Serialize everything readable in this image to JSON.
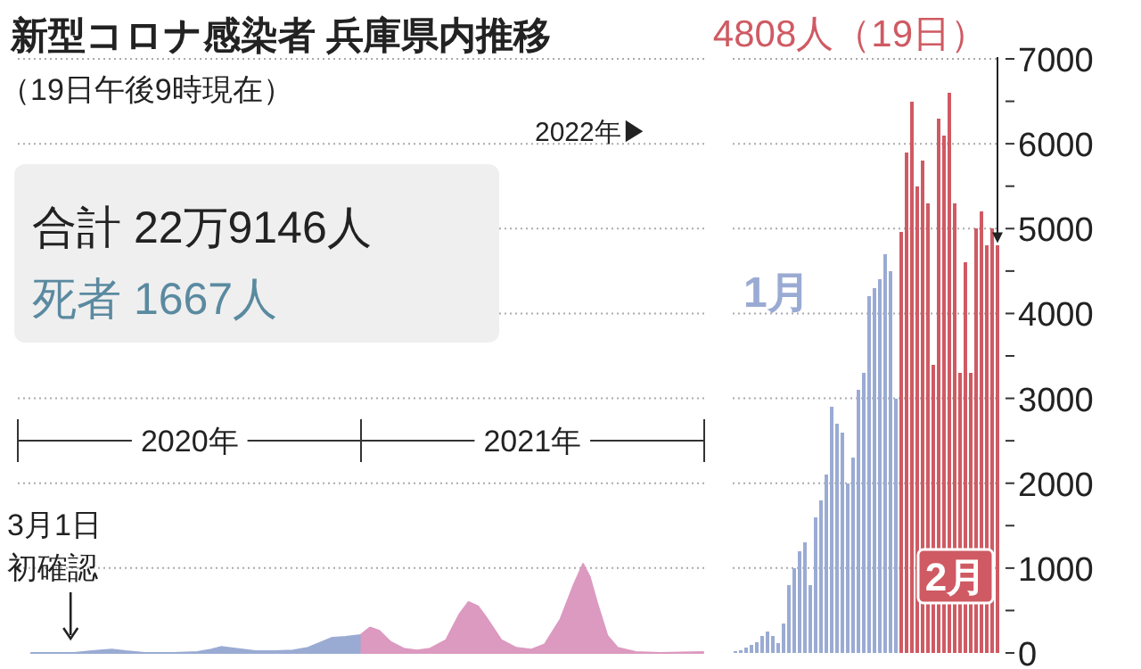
{
  "chart_data": [
    {
      "type": "area",
      "title": "新型コロナ感染者 兵庫県内推移",
      "subtitle": "（19日午後9時現在）",
      "annotations": [
        {
          "text": "3月1日初確認",
          "x": "2020-03-01",
          "y": 0
        },
        "2022年▶",
        "合計 22万9146人",
        "死者 1667人"
      ],
      "series": [
        {
          "color": "#9aabd3",
          "x": [
            "2020-01-15",
            "2020-02-15",
            "2020-03-01",
            "2020-03-20",
            "2020-04-10",
            "2020-04-25",
            "2020-05-15",
            "2020-06-15",
            "2020-07-10",
            "2020-07-25",
            "2020-08-05",
            "2020-08-20",
            "2020-09-10",
            "2020-10-01",
            "2020-10-20",
            "2020-11-05",
            "2020-11-20",
            "2020-12-01",
            "2020-12-15",
            "2020-12-31"
          ],
          "values": [
            0,
            0,
            0,
            20,
            40,
            20,
            0,
            0,
            10,
            40,
            70,
            50,
            20,
            20,
            30,
            60,
            130,
            180,
            190,
            210
          ]
        },
        {
          "color": "#dc9ac0",
          "x": [
            "2021-01-01",
            "2021-01-10",
            "2021-01-20",
            "2021-02-01",
            "2021-02-15",
            "2021-03-01",
            "2021-03-15",
            "2021-04-01",
            "2021-04-15",
            "2021-04-25",
            "2021-05-05",
            "2021-05-15",
            "2021-05-30",
            "2021-06-15",
            "2021-07-01",
            "2021-07-15",
            "2021-08-01",
            "2021-08-15",
            "2021-08-25",
            "2021-09-01",
            "2021-09-10",
            "2021-09-20",
            "2021-10-01",
            "2021-10-20",
            "2021-11-15",
            "2021-12-31"
          ],
          "values": [
            220,
            300,
            260,
            130,
            50,
            30,
            50,
            150,
            450,
            600,
            550,
            400,
            150,
            60,
            40,
            100,
            400,
            800,
            1050,
            900,
            550,
            200,
            60,
            10,
            0,
            10
          ]
        }
      ],
      "xlim": [
        "2020-01-01",
        "2022-01-01"
      ],
      "xticks": [
        {
          "value": "2020-07-02",
          "label": "2020年"
        },
        {
          "value": "2021-07-02",
          "label": "2021年"
        }
      ],
      "ylim": [
        0,
        7000
      ],
      "yticks": [
        0,
        1000,
        2000,
        3000,
        4000,
        5000,
        6000,
        7000
      ],
      "tick_labels": "x",
      "grid": "y"
    },
    {
      "type": "bar",
      "categories": [
        null,
        null,
        null,
        null,
        null,
        null,
        null,
        null,
        null,
        null,
        null,
        null,
        null,
        null,
        null,
        null,
        null,
        null,
        null,
        null,
        null,
        null,
        null,
        null,
        null,
        null,
        null,
        null,
        null,
        null,
        null,
        null,
        null,
        null,
        null,
        null,
        null,
        null,
        null,
        null,
        null,
        null,
        null,
        null,
        null,
        null,
        null,
        null,
        null,
        null
      ],
      "values": [
        20,
        30,
        60,
        90,
        130,
        200,
        250,
        200,
        120,
        350,
        800,
        1000,
        1200,
        1300,
        800,
        1600,
        1800,
        2100,
        2900,
        2700,
        2600,
        2000,
        2300,
        3100,
        3300,
        4200,
        4300,
        4400,
        4700,
        4500,
        3000,
        4960,
        5900,
        6500,
        5500,
        5800,
        5300,
        3400,
        6300,
        6100,
        6600,
        5300,
        3300,
        4600,
        3300,
        5000,
        5200,
        4800,
        5000,
        4808
      ],
      "colors": [
        "#9aabd3",
        "#9aabd3",
        "#9aabd3",
        "#9aabd3",
        "#9aabd3",
        "#9aabd3",
        "#9aabd3",
        "#9aabd3",
        "#9aabd3",
        "#9aabd3",
        "#9aabd3",
        "#9aabd3",
        "#9aabd3",
        "#9aabd3",
        "#9aabd3",
        "#9aabd3",
        "#9aabd3",
        "#9aabd3",
        "#9aabd3",
        "#9aabd3",
        "#9aabd3",
        "#9aabd3",
        "#9aabd3",
        "#9aabd3",
        "#9aabd3",
        "#9aabd3",
        "#9aabd3",
        "#9aabd3",
        "#9aabd3",
        "#9aabd3",
        "#9aabd3",
        "#cf5a63",
        "#cf5a63",
        "#cf5a63",
        "#cf5a63",
        "#cf5a63",
        "#cf5a63",
        "#cf5a63",
        "#cf5a63",
        "#cf5a63",
        "#cf5a63",
        "#cf5a63",
        "#cf5a63",
        "#cf5a63",
        "#cf5a63",
        "#cf5a63",
        "#cf5a63",
        "#cf5a63",
        "#cf5a63",
        "#cf5a63"
      ],
      "annotations": [
        "1月",
        "2月",
        "4808人（19日）"
      ],
      "ylim": [
        0,
        7000
      ],
      "yticks": [
        0,
        {
          "value": 500,
          "label": null
        },
        1000,
        {
          "value": 1500,
          "label": null
        },
        2000,
        {
          "value": 2500,
          "label": null
        },
        3000,
        {
          "value": 3500,
          "label": null
        },
        4000,
        {
          "value": 4500,
          "label": null
        },
        5000,
        {
          "value": 5500,
          "label": null
        },
        6000,
        {
          "value": 6500,
          "label": null
        },
        7000
      ],
      "tick_labels": "y",
      "grid": "y"
    }
  ]
}
